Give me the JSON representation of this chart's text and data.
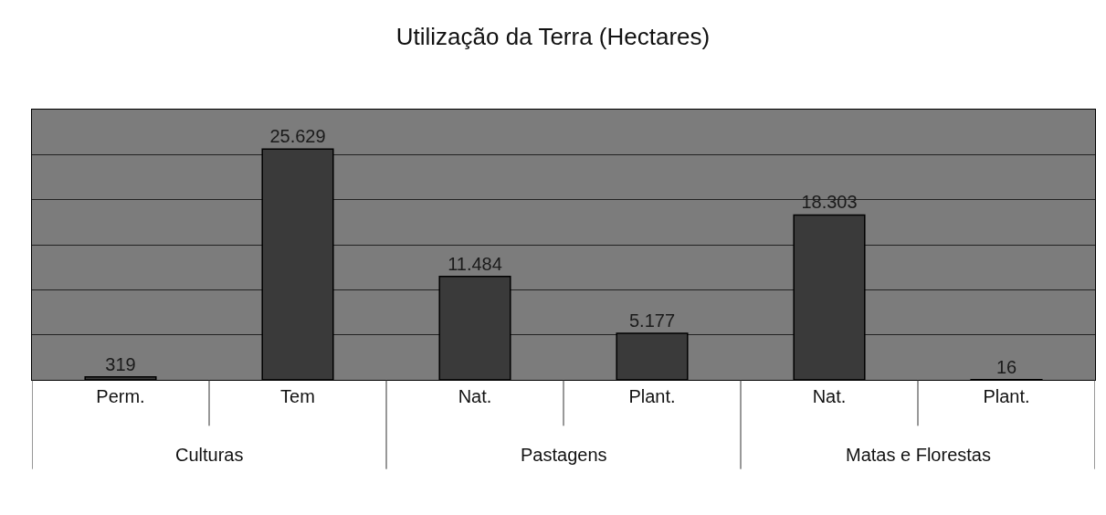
{
  "chart_data": {
    "type": "bar",
    "title": "Utilização da Terra (Hectares)",
    "categories": [
      "Perm.",
      "Tem",
      "Nat.",
      "Plant.",
      "Nat.",
      "Plant."
    ],
    "values": [
      319,
      25629,
      11484,
      5177,
      18303,
      16
    ],
    "value_labels": [
      "319",
      "25.629",
      "11.484",
      "5.177",
      "18.303",
      "16"
    ],
    "color": "#3a3a3a",
    "ylim": [
      0,
      30000
    ],
    "yticks": [
      {
        "value": 0,
        "label": null
      },
      {
        "value": 5000,
        "label": null
      },
      {
        "value": 10000,
        "label": null
      },
      {
        "value": 15000,
        "label": null
      },
      {
        "value": 20000,
        "label": null
      },
      {
        "value": 25000,
        "label": null
      },
      {
        "value": 30000,
        "label": null
      }
    ],
    "tick_labels": "x",
    "grid": "y",
    "annotations": [
      "Culturas",
      "Pastagens",
      "Matas e Florestas"
    ]
  }
}
